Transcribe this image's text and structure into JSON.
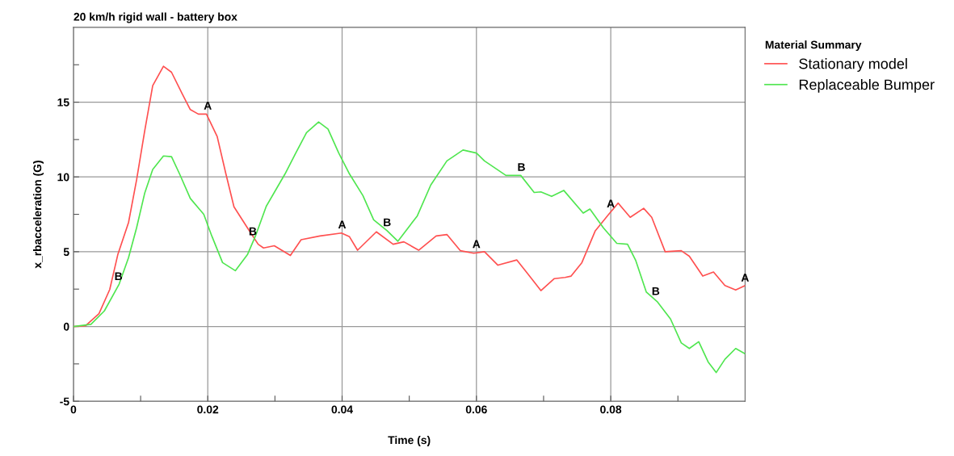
{
  "chart_data": {
    "type": "line",
    "title": "20 km/h rigid wall - battery box",
    "xlabel": "Time (s)",
    "ylabel": "x_rbacceleration (G)",
    "legend_title": "Material Summary",
    "series": [
      {
        "name": "Stationary model",
        "color": "#ff5050",
        "x": [
          0,
          0.0018,
          0.0038,
          0.0054,
          0.0066,
          0.0082,
          0.0094,
          0.0106,
          0.0118,
          0.0134,
          0.0146,
          0.0162,
          0.0174,
          0.0186,
          0.0198,
          0.0214,
          0.0227,
          0.0239,
          0.0259,
          0.0275,
          0.0283,
          0.0299,
          0.0323,
          0.0339,
          0.0367,
          0.0399,
          0.0411,
          0.0423,
          0.0451,
          0.0476,
          0.0492,
          0.0514,
          0.054,
          0.0556,
          0.0576,
          0.0596,
          0.0612,
          0.0632,
          0.066,
          0.0676,
          0.0696,
          0.0716,
          0.0732,
          0.0741,
          0.0757,
          0.0777,
          0.0797,
          0.0811,
          0.0829,
          0.0849,
          0.0861,
          0.0881,
          0.0905,
          0.0917,
          0.0937,
          0.0953,
          0.097,
          0.0986,
          0.1
        ],
        "values": [
          0,
          0.05,
          0.86,
          2.47,
          4.8,
          6.95,
          9.8,
          13.05,
          16.1,
          17.4,
          17.0,
          15.55,
          14.5,
          14.2,
          14.2,
          12.7,
          10.2,
          8.0,
          6.6,
          5.5,
          5.25,
          5.4,
          4.75,
          5.8,
          6.05,
          6.25,
          6.0,
          5.1,
          6.33,
          5.5,
          5.66,
          5.1,
          6.05,
          6.15,
          5.07,
          4.9,
          5.0,
          4.1,
          4.45,
          3.55,
          2.4,
          3.2,
          3.28,
          3.37,
          4.27,
          6.4,
          7.5,
          8.25,
          7.3,
          7.9,
          7.3,
          5.0,
          5.07,
          4.7,
          3.37,
          3.64,
          2.74,
          2.44,
          2.74
        ]
      },
      {
        "name": "Replaceable Bumper",
        "color": "#50e650",
        "x": [
          0,
          0.0026,
          0.0046,
          0.0068,
          0.0082,
          0.0094,
          0.0106,
          0.0118,
          0.0134,
          0.0146,
          0.0158,
          0.0174,
          0.0194,
          0.0206,
          0.0222,
          0.0241,
          0.0259,
          0.0271,
          0.0287,
          0.0315,
          0.0331,
          0.0347,
          0.0365,
          0.0379,
          0.0395,
          0.0411,
          0.0431,
          0.0447,
          0.0467,
          0.0483,
          0.0512,
          0.0532,
          0.0556,
          0.058,
          0.06,
          0.0612,
          0.0644,
          0.0666,
          0.0686,
          0.0696,
          0.0712,
          0.073,
          0.0759,
          0.0769,
          0.0789,
          0.0809,
          0.0825,
          0.0837,
          0.0853,
          0.0869,
          0.0889,
          0.0905,
          0.0917,
          0.0931,
          0.0945,
          0.0957,
          0.097,
          0.0986,
          0.1
        ],
        "values": [
          0,
          0.14,
          1.04,
          2.83,
          4.6,
          6.6,
          8.9,
          10.5,
          11.4,
          11.35,
          10.2,
          8.56,
          7.5,
          6.05,
          4.27,
          3.73,
          4.8,
          6.05,
          8.03,
          10.2,
          11.6,
          12.96,
          13.67,
          13.2,
          11.6,
          10.2,
          8.75,
          7.13,
          6.4,
          5.7,
          7.4,
          9.46,
          11.07,
          11.8,
          11.6,
          11.07,
          10.1,
          10.1,
          8.96,
          9.0,
          8.7,
          9.1,
          7.58,
          7.85,
          6.6,
          5.56,
          5.5,
          4.44,
          2.3,
          1.67,
          0.5,
          -1.1,
          -1.47,
          -1.02,
          -2.37,
          -3.08,
          -2.19,
          -1.47,
          -1.83
        ]
      }
    ],
    "annotations": [
      {
        "text": "A",
        "x": 0.02,
        "y": 14.2
      },
      {
        "text": "A",
        "x": 0.04,
        "y": 6.25
      },
      {
        "text": "A",
        "x": 0.06,
        "y": 4.95
      },
      {
        "text": "A",
        "x": 0.08,
        "y": 7.65
      },
      {
        "text": "A",
        "x": 0.1,
        "y": 2.7
      },
      {
        "text": "B",
        "x": 0.0067,
        "y": 2.8
      },
      {
        "text": "B",
        "x": 0.0267,
        "y": 5.8
      },
      {
        "text": "B",
        "x": 0.0467,
        "y": 6.4
      },
      {
        "text": "B",
        "x": 0.0667,
        "y": 10.1
      },
      {
        "text": "B",
        "x": 0.0867,
        "y": 1.8
      }
    ],
    "xlim": [
      0,
      0.1
    ],
    "ylim": [
      -5,
      20
    ],
    "xticks": [
      0,
      {
        "value": 0.01,
        "label": null
      },
      0.02,
      {
        "value": 0.03,
        "label": null
      },
      0.04,
      {
        "value": 0.05,
        "label": null
      },
      0.06,
      {
        "value": 0.07,
        "label": null
      },
      0.08,
      {
        "value": 0.09,
        "label": null
      }
    ],
    "yticks": [
      -5,
      {
        "value": -2.5,
        "label": null
      },
      0,
      {
        "value": 2.5,
        "label": null
      },
      5,
      {
        "value": 7.5,
        "label": null
      },
      10,
      {
        "value": 12.5,
        "label": null
      },
      15,
      {
        "value": 17.5,
        "label": null
      }
    ],
    "grid": true,
    "legend": "top right",
    "line_style": "solid"
  }
}
